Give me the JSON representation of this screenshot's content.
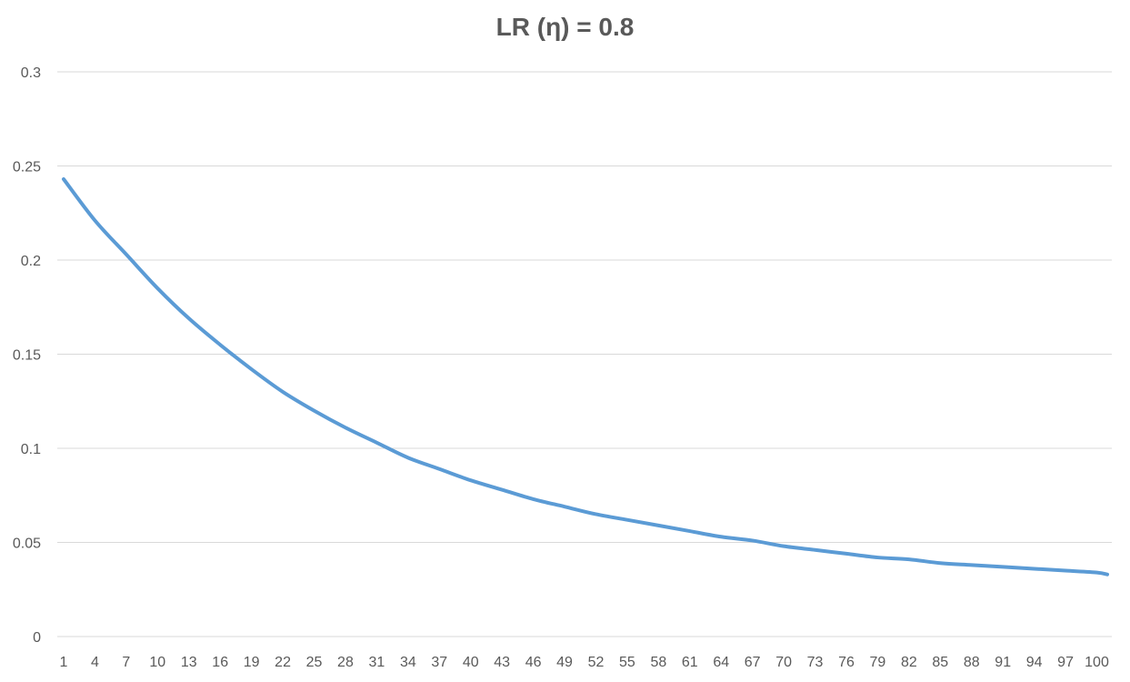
{
  "chart_data": {
    "type": "line",
    "title": "LR (η)  = 0.8",
    "xlabel": "",
    "ylabel": "",
    "ylim": [
      0,
      0.3
    ],
    "yticks": [
      "0",
      "0.05",
      "0.1",
      "0.15",
      "0.2",
      "0.25",
      "0.3"
    ],
    "xticks": [
      "1",
      "4",
      "7",
      "10",
      "13",
      "16",
      "19",
      "22",
      "25",
      "28",
      "31",
      "34",
      "37",
      "40",
      "43",
      "46",
      "49",
      "52",
      "55",
      "58",
      "61",
      "64",
      "67",
      "70",
      "73",
      "76",
      "79",
      "82",
      "85",
      "88",
      "91",
      "94",
      "97",
      "100"
    ],
    "grid": true,
    "legend": "none",
    "series": [
      {
        "color": "#5b9bd5",
        "x": [
          1,
          4,
          7,
          10,
          13,
          16,
          19,
          22,
          25,
          28,
          31,
          34,
          37,
          40,
          43,
          46,
          49,
          52,
          55,
          58,
          61,
          64,
          67,
          70,
          73,
          76,
          79,
          82,
          85,
          88,
          91,
          94,
          97,
          100,
          101
        ],
        "values": [
          0.243,
          0.221,
          0.203,
          0.185,
          0.169,
          0.155,
          0.142,
          0.13,
          0.12,
          0.111,
          0.103,
          0.095,
          0.089,
          0.083,
          0.078,
          0.073,
          0.069,
          0.065,
          0.062,
          0.059,
          0.056,
          0.053,
          0.051,
          0.048,
          0.046,
          0.044,
          0.042,
          0.041,
          0.039,
          0.038,
          0.037,
          0.036,
          0.035,
          0.034,
          0.033
        ]
      }
    ]
  }
}
